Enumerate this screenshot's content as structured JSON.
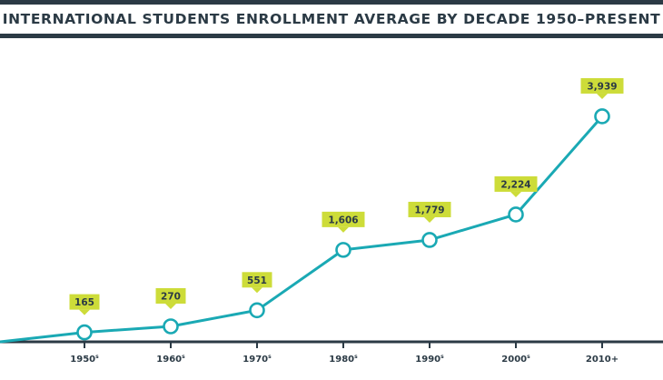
{
  "title": "INTERNATIONAL STUDENTS ENROLLMENT AVERAGE BY DECADE 1950–PRESENT",
  "colors": {
    "line": "#1aa9b4",
    "label_bg": "#cddc39",
    "text": "#2b3a45",
    "rules": "#2b3a45"
  },
  "chart_data": {
    "type": "line",
    "title": "INTERNATIONAL STUDENTS ENROLLMENT AVERAGE BY DECADE 1950–PRESENT",
    "xlabel": "",
    "ylabel": "",
    "categories": [
      {
        "main": "1950",
        "sup": "s"
      },
      {
        "main": "1960",
        "sup": "s"
      },
      {
        "main": "1970",
        "sup": "s"
      },
      {
        "main": "1980",
        "sup": "s"
      },
      {
        "main": "1990",
        "sup": "s"
      },
      {
        "main": "2000",
        "sup": "s"
      },
      {
        "main": "2010+",
        "sup": ""
      }
    ],
    "values": [
      165,
      270,
      551,
      1606,
      1779,
      2224,
      3939
    ],
    "value_labels": [
      "165",
      "270",
      "551",
      "1,606",
      "1,779",
      "2,224",
      "3,939"
    ],
    "ylim": [
      0,
      4200
    ],
    "grid": false,
    "legend": "none",
    "line_starts_at_left_edge_from_zero": true
  }
}
